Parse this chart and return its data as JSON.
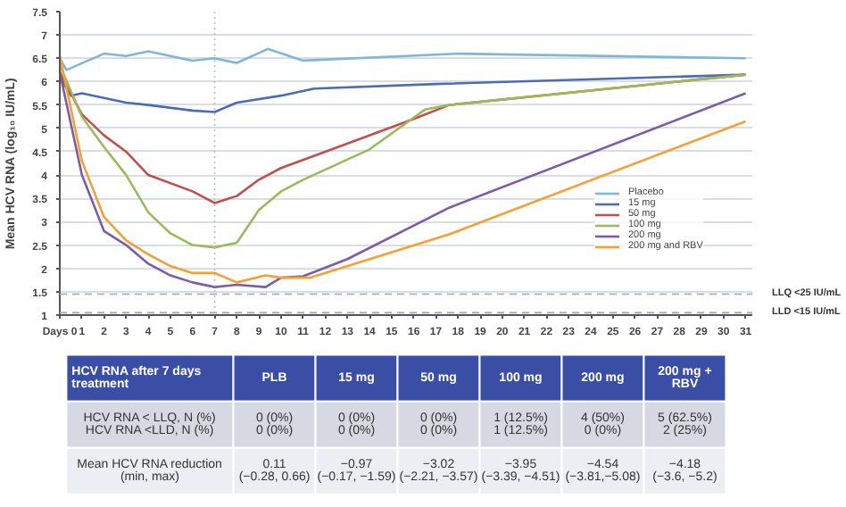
{
  "chart_data": [
    {
      "type": "line",
      "ylabel": "Mean HCV RNA (log₁₀ IU/mL)",
      "xlim": [
        0,
        31.3
      ],
      "ylim": [
        1,
        7.5
      ],
      "xticks": [
        {
          "value": 0,
          "label": "Days 0"
        },
        1,
        2,
        3,
        4,
        5,
        6,
        7,
        8,
        9,
        10,
        11,
        12,
        13,
        14,
        15,
        16,
        17,
        18,
        19,
        20,
        21,
        22,
        23,
        24,
        25,
        26,
        27,
        28,
        29,
        30,
        31
      ],
      "yticks": [
        1,
        1.5,
        2,
        2.5,
        3,
        3.5,
        4,
        4.5,
        5,
        5.5,
        6,
        6.5,
        7,
        7.5
      ],
      "grid": "y",
      "legend": "right",
      "line_style": "solid",
      "marker": "none",
      "ref_lines": [
        {
          "axis": "y",
          "value": 1.45,
          "label": "LLQ <25 IU/mL",
          "line_style": "dashed",
          "color": "#9aa5b5"
        },
        {
          "axis": "y",
          "value": 1.05,
          "label": "LLD <15 IU/mL",
          "line_style": "dashed",
          "color": "#9aa5b5"
        },
        {
          "axis": "x",
          "value": 7,
          "line_style": "dotted",
          "color": "#b5bcc8"
        }
      ],
      "series": [
        {
          "name": "Placebo",
          "color": "#7fb7d9",
          "x": [
            0,
            0.3,
            2,
            3,
            4,
            6,
            7,
            8,
            9.4,
            11,
            18,
            31
          ],
          "values": [
            6.5,
            6.25,
            6.6,
            6.55,
            6.65,
            6.45,
            6.5,
            6.4,
            6.7,
            6.45,
            6.6,
            6.5
          ]
        },
        {
          "name": "15 mg",
          "color": "#4a6db5",
          "x": [
            0,
            0.5,
            1,
            3,
            4,
            6,
            7,
            8,
            10,
            11.5,
            17,
            31
          ],
          "values": [
            6.1,
            5.7,
            5.75,
            5.55,
            5.5,
            5.38,
            5.35,
            5.55,
            5.7,
            5.85,
            5.95,
            6.15
          ]
        },
        {
          "name": "50 mg",
          "color": "#c0504d",
          "x": [
            0,
            1,
            2,
            3,
            4,
            6,
            7,
            8,
            9,
            10,
            12,
            16,
            17.6,
            31
          ],
          "values": [
            6.2,
            5.3,
            4.85,
            4.5,
            4.0,
            3.65,
            3.4,
            3.55,
            3.9,
            4.15,
            4.5,
            5.2,
            5.5,
            6.15
          ]
        },
        {
          "name": "100 mg",
          "color": "#9bbb59",
          "x": [
            0,
            1,
            2,
            3,
            4,
            5,
            6,
            7,
            8,
            9,
            10,
            11,
            14,
            16.5,
            17.6,
            31
          ],
          "values": [
            6.35,
            5.25,
            4.6,
            4.0,
            3.2,
            2.75,
            2.5,
            2.45,
            2.55,
            3.25,
            3.65,
            3.9,
            4.55,
            5.4,
            5.5,
            6.15
          ]
        },
        {
          "name": "200 mg",
          "color": "#7a5ca8",
          "x": [
            0,
            1,
            2,
            3,
            4,
            5,
            6,
            7,
            8,
            9.3,
            10,
            11,
            13,
            17.6,
            31
          ],
          "values": [
            6.2,
            4.0,
            2.8,
            2.5,
            2.1,
            1.85,
            1.7,
            1.6,
            1.65,
            1.6,
            1.8,
            1.83,
            2.2,
            3.3,
            5.75
          ]
        },
        {
          "name": "200 mg and RBV",
          "color": "#f5a030",
          "x": [
            0,
            1,
            2,
            3,
            4,
            5,
            6,
            7,
            8,
            9.3,
            10,
            11.3,
            17.6,
            31
          ],
          "values": [
            6.55,
            4.3,
            3.1,
            2.6,
            2.3,
            2.05,
            1.9,
            1.9,
            1.7,
            1.85,
            1.8,
            1.8,
            2.73,
            5.15
          ]
        }
      ]
    },
    {
      "type": "other",
      "categories": [
        "HCV RNA after 7 days\ntreatment",
        "PLB",
        "15 mg",
        "50 mg",
        "100 mg",
        "200 mg",
        "200 mg +\nRBV"
      ],
      "annotations": [
        "HCV RNA < LLQ, N (%)\nHCV RNA <LLD, N (%)",
        "0 (0%)\n0 (0%)",
        "0 (0%)\n0 (0%)",
        "0 (0%)\n0 (0%)",
        "1 (12.5%)\n1 (12.5%)",
        "4 (50%)\n0 (0%)",
        "5 (62.5%)\n2 (25%)",
        "Mean HCV RNA reduction\n(min, max)",
        "0.11\n(−0.28, 0.66)",
        "−0.97\n(−0.17, −1.59)",
        "−3.02\n(−2.21, −3.57)",
        "−3.95\n(−3.39, −4.51)",
        "−4.54\n(−3.81,−5.08)",
        "−4.18\n(−3.6, −5.2)"
      ]
    }
  ]
}
